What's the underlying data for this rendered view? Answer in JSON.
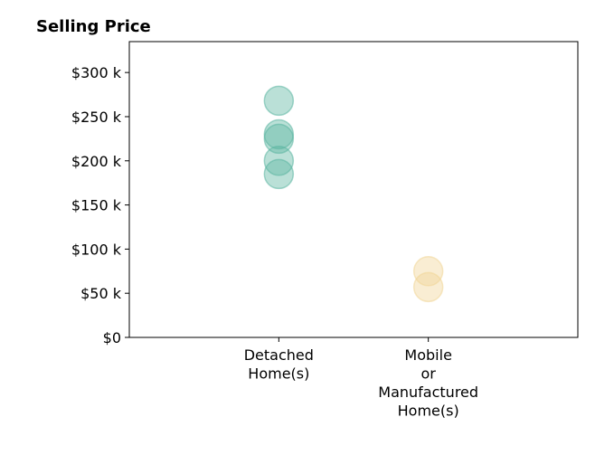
{
  "chart_data": {
    "type": "scatter",
    "title": "Selling Price",
    "xlabel": "",
    "ylabel": "",
    "categories": [
      [
        "Detached",
        "Home(s)"
      ],
      [
        "Mobile",
        "or",
        "Manufactured",
        "Home(s)"
      ]
    ],
    "xlim": [
      -1,
      2
    ],
    "ylim": [
      0,
      335000
    ],
    "yticks": [
      0,
      50000,
      100000,
      150000,
      200000,
      250000,
      300000
    ],
    "ytick_labels": [
      "$0",
      "$50 k",
      "$100 k",
      "$150 k",
      "$200 k",
      "$250 k",
      "$300 k"
    ],
    "grid": false,
    "series": [
      {
        "category": 0,
        "color": "#5ab4a0",
        "values": [
          268000,
          230000,
          225000,
          200000,
          185000
        ]
      },
      {
        "category": 1,
        "color": "#f0d596",
        "values": [
          75000,
          57000
        ]
      }
    ]
  }
}
